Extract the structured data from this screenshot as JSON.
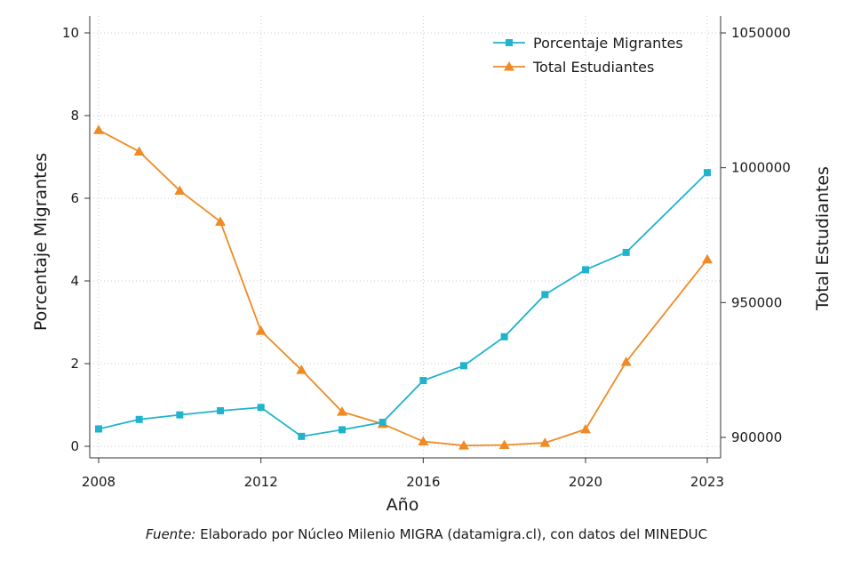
{
  "source": {
    "prefix": "Fuente:",
    "text": " Elaborado por Núcleo Milenio MIGRA (datamigra.cl), con datos del MINEDUC"
  },
  "chart_data": {
    "type": "line",
    "xlabel": "Año",
    "ylabel_left": "Porcentaje Migrantes",
    "ylabel_right": "Total Estudiantes",
    "x": [
      2008,
      2009,
      2010,
      2011,
      2012,
      2013,
      2014,
      2015,
      2016,
      2017,
      2018,
      2019,
      2020,
      2021,
      2023
    ],
    "x_ticks": [
      2008,
      2012,
      2016,
      2020,
      2023
    ],
    "xlim": [
      2008,
      2023
    ],
    "ylim_left": [
      0,
      10
    ],
    "y_ticks_left": [
      0,
      2,
      4,
      6,
      8,
      10
    ],
    "ylim_right": [
      900000,
      1050000
    ],
    "y_ticks_right": [
      900000,
      950000,
      1000000,
      1050000
    ],
    "grid": true,
    "legend_position": "top-right",
    "series": [
      {
        "name": "Porcentaje Migrantes",
        "axis": "left",
        "color": "#1fb3cc",
        "marker": "square",
        "values": [
          0.42,
          0.65,
          0.76,
          0.86,
          0.94,
          0.24,
          0.4,
          0.58,
          1.59,
          1.95,
          2.65,
          3.67,
          4.27,
          4.69,
          6.62
        ]
      },
      {
        "name": "Total Estudiantes",
        "axis": "right",
        "color": "#f08a24",
        "marker": "triangle",
        "values": [
          1014000,
          1006000,
          991500,
          980000,
          939500,
          925000,
          909500,
          905000,
          898500,
          897000,
          897200,
          898000,
          903000,
          928000,
          966000
        ]
      }
    ]
  }
}
